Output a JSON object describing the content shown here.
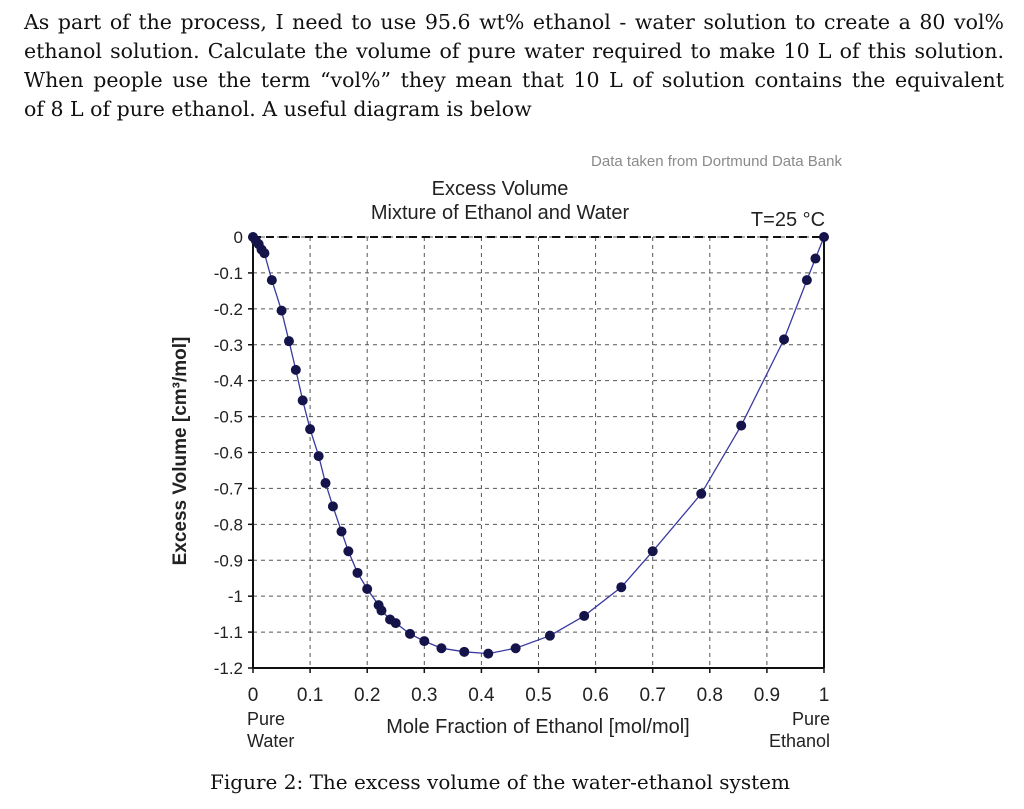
{
  "problem": {
    "lines": [
      "As part of the process, I need to use 95.6 wt% ethanol - water solution to create a 80 vol%",
      "ethanol solution. Calculate the volume of pure water required to make 10 L of this solution.",
      "When people use the term “vol%” they mean that 10 L of solution contains the equivalent",
      "of 8 L of pure ethanol. A useful diagram is below"
    ]
  },
  "caption": "Figure 2: The excess volume of the water-ethanol system",
  "chart_data": {
    "type": "scatter",
    "source_note": "Data taken from Dortmund Data Bank",
    "title": "Excess Volume",
    "subtitle": "Mixture of Ethanol and Water",
    "temperature_label": "T=25 °C",
    "xlabel": "Mole Fraction of Ethanol [mol/mol]",
    "ylabel": "Excess Volume [cm³/mol]",
    "x_left_label": [
      "Pure",
      "Water"
    ],
    "x_right_label": [
      "Pure",
      "Ethanol"
    ],
    "xlim": [
      0,
      1
    ],
    "ylim": [
      -1.2,
      0
    ],
    "xticks": [
      0,
      0.1,
      0.2,
      0.3,
      0.4,
      0.5,
      0.6,
      0.7,
      0.8,
      0.9,
      1
    ],
    "xtick_labels": [
      "0",
      "0.1",
      "0.2",
      "0.3",
      "0.4",
      "0.5",
      "0.6",
      "0.7",
      "0.8",
      "0.9",
      "1"
    ],
    "yticks": [
      0,
      -0.1,
      -0.2,
      -0.3,
      -0.4,
      -0.5,
      -0.6,
      -0.7,
      -0.8,
      -0.9,
      -1,
      -1.1,
      -1.2
    ],
    "ytick_labels": [
      "0",
      "-0.1",
      "-0.2",
      "-0.3",
      "-0.4",
      "-0.5",
      "-0.6",
      "-0.7",
      "-0.8",
      "-0.9",
      "-1",
      "-1.1",
      "-1.2"
    ],
    "grid": true,
    "marker_color": "#14144a",
    "line_color": "#3a3aa0",
    "points": [
      {
        "x": 0.0,
        "y": 0.0
      },
      {
        "x": 0.005,
        "y": -0.01
      },
      {
        "x": 0.01,
        "y": -0.02
      },
      {
        "x": 0.015,
        "y": -0.035
      },
      {
        "x": 0.02,
        "y": -0.045
      },
      {
        "x": 0.033,
        "y": -0.12
      },
      {
        "x": 0.05,
        "y": -0.205
      },
      {
        "x": 0.063,
        "y": -0.29
      },
      {
        "x": 0.075,
        "y": -0.37
      },
      {
        "x": 0.087,
        "y": -0.455
      },
      {
        "x": 0.1,
        "y": -0.535
      },
      {
        "x": 0.115,
        "y": -0.61
      },
      {
        "x": 0.127,
        "y": -0.685
      },
      {
        "x": 0.14,
        "y": -0.75
      },
      {
        "x": 0.155,
        "y": -0.82
      },
      {
        "x": 0.167,
        "y": -0.875
      },
      {
        "x": 0.183,
        "y": -0.935
      },
      {
        "x": 0.2,
        "y": -0.98
      },
      {
        "x": 0.22,
        "y": -1.025
      },
      {
        "x": 0.225,
        "y": -1.04
      },
      {
        "x": 0.24,
        "y": -1.065
      },
      {
        "x": 0.25,
        "y": -1.075
      },
      {
        "x": 0.275,
        "y": -1.105
      },
      {
        "x": 0.3,
        "y": -1.125
      },
      {
        "x": 0.33,
        "y": -1.145
      },
      {
        "x": 0.37,
        "y": -1.155
      },
      {
        "x": 0.412,
        "y": -1.16
      },
      {
        "x": 0.46,
        "y": -1.145
      },
      {
        "x": 0.52,
        "y": -1.11
      },
      {
        "x": 0.58,
        "y": -1.055
      },
      {
        "x": 0.645,
        "y": -0.975
      },
      {
        "x": 0.7,
        "y": -0.875
      },
      {
        "x": 0.785,
        "y": -0.715
      },
      {
        "x": 0.855,
        "y": -0.525
      },
      {
        "x": 0.93,
        "y": -0.285
      },
      {
        "x": 0.97,
        "y": -0.12
      },
      {
        "x": 0.985,
        "y": -0.06
      },
      {
        "x": 1.0,
        "y": 0.0
      }
    ]
  }
}
